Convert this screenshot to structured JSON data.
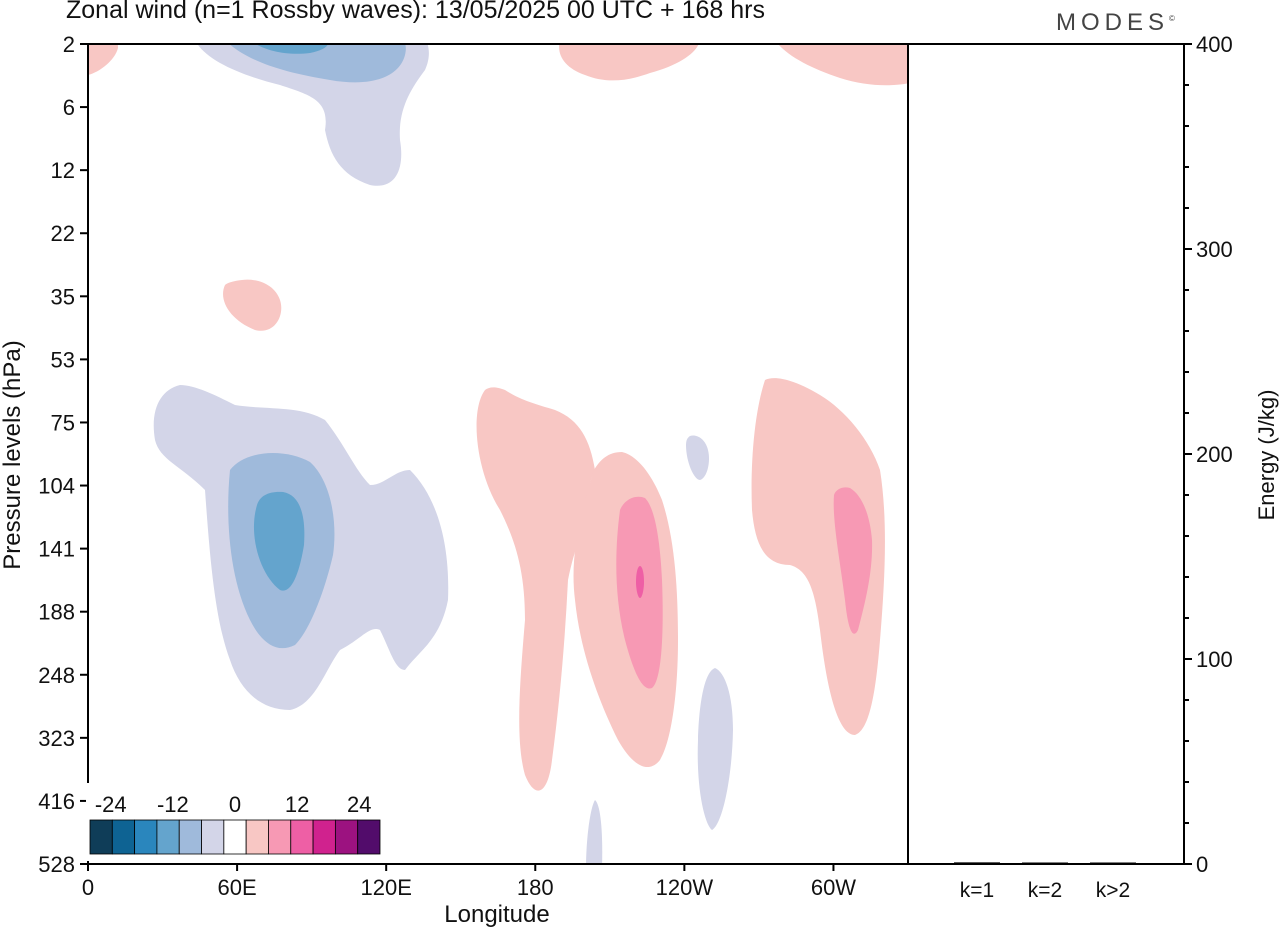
{
  "header": {
    "title": "Zonal wind (n=1 Rossby waves):  13/05/2025  00 UTC  + 168 hrs",
    "brand": "MODES",
    "brand_mark": "©"
  },
  "chart_data": [
    {
      "type": "heatmap",
      "title": "Zonal wind (n=1 Rossby waves):  13/05/2025  00 UTC  + 168 hrs",
      "xlabel": "Longitude",
      "ylabel": "Pressure levels (hPa)",
      "x_ticks": [
        "0",
        "60E",
        "120E",
        "180",
        "120W",
        "60W"
      ],
      "x_tick_values": [
        0,
        60,
        120,
        180,
        240,
        300
      ],
      "xlim": [
        0,
        330
      ],
      "y_ticks": [
        "2",
        "6",
        "12",
        "22",
        "35",
        "53",
        "75",
        "104",
        "141",
        "188",
        "248",
        "323",
        "416",
        "528"
      ],
      "colorbar": {
        "tick_labels": [
          "-24",
          "-12",
          "0",
          "12",
          "24"
        ],
        "levels": [
          -28,
          -24,
          -20,
          -16,
          -12,
          -8,
          -4,
          4,
          8,
          12,
          16,
          20,
          24,
          28
        ],
        "colors": [
          "#0f3d58",
          "#0e6393",
          "#2a86bd",
          "#64a4cd",
          "#9fbadb",
          "#d3d5e8",
          "#ffffff",
          "#f8c7c4",
          "#f799b4",
          "#ee5fa5",
          "#d0228e",
          "#9c1280",
          "#520c6b"
        ]
      },
      "features": [
        {
          "sign": "negative",
          "min": -16,
          "lon": 80,
          "level": "141"
        },
        {
          "sign": "negative",
          "min": -16,
          "lon": 85,
          "level": "2"
        },
        {
          "sign": "positive",
          "max": 12,
          "lon": 222,
          "level": "141"
        },
        {
          "sign": "positive",
          "max": 8,
          "lon": 307,
          "level": "141"
        },
        {
          "sign": "positive",
          "max": 4,
          "lon": 65,
          "level": "35"
        },
        {
          "sign": "negative",
          "min": -4,
          "lon": 251,
          "level": "323"
        }
      ]
    },
    {
      "type": "bar",
      "categories": [
        "k=1",
        "k=2",
        "k>2"
      ],
      "values": [
        0.8,
        0.2,
        0.4
      ],
      "ylabel": "Energy (J/kg)",
      "ylim": [
        0,
        400
      ],
      "y_ticks": [
        "0",
        "100",
        "200",
        "300",
        "400"
      ],
      "y_tick_values": [
        0,
        100,
        200,
        300,
        400
      ]
    }
  ],
  "colors": {
    "neg1": "#d3d5e8",
    "neg2": "#9fbadb",
    "neg3": "#64a4cd",
    "neg4": "#2a86bd",
    "pos1": "#f8c7c4",
    "pos2": "#f799b4",
    "pos3": "#ee5fa5"
  }
}
